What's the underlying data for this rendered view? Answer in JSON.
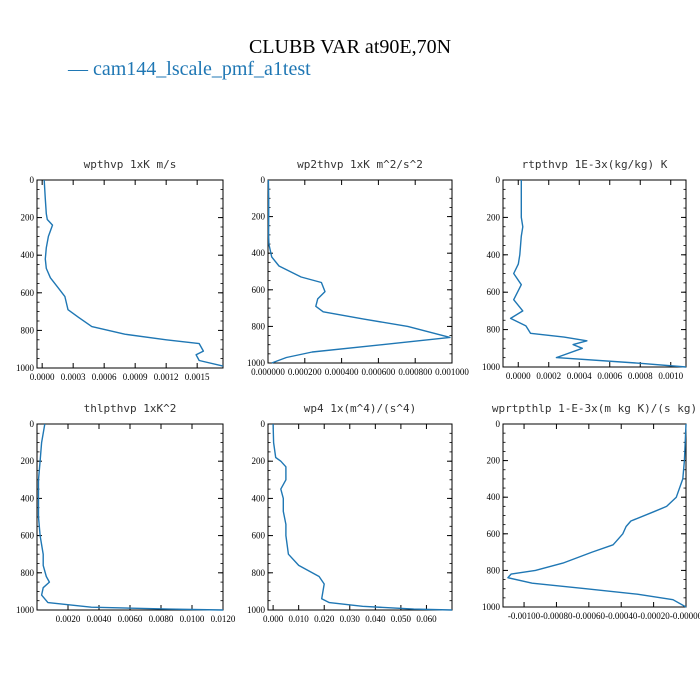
{
  "title": "CLUBB VAR at90E,70N",
  "legend": {
    "series_name": "cam144_lscale_pmf_a1test",
    "color": "#1f77b4"
  },
  "chart_data": [
    {
      "type": "line",
      "title": "wpthvp  1xK m/s",
      "xlim": [
        -5e-05,
        0.00175
      ],
      "ylim": [
        1000,
        0
      ],
      "xticks": [
        0,
        0.0003,
        0.0006,
        0.0009,
        0.0012,
        0.0015
      ],
      "xtick_labels": [
        "0.0000",
        "0.0003",
        "0.0006",
        "0.0009",
        "0.0012",
        "0.0015"
      ],
      "yticks": [
        0,
        200,
        400,
        600,
        800,
        1000
      ],
      "series": [
        {
          "x": [
            2e-05,
            3e-05,
            4e-05,
            5e-05,
            0.0001,
            6e-05,
            4e-05,
            3e-05,
            4e-05,
            8e-05,
            0.00015,
            0.00022,
            0.00025,
            0.00035,
            0.00048,
            0.0008,
            0.0012,
            0.00152,
            0.00156,
            0.00149,
            0.00152,
            0.00175
          ],
          "y": [
            0,
            100,
            180,
            210,
            240,
            300,
            360,
            420,
            470,
            520,
            570,
            620,
            690,
            730,
            780,
            820,
            850,
            870,
            910,
            930,
            960,
            990
          ]
        }
      ]
    },
    {
      "type": "line",
      "title": "wp2thvp  1xK m^2/s^2",
      "xlim": [
        0,
        0.001
      ],
      "ylim": [
        1000,
        0
      ],
      "xticks": [
        0,
        0.0002,
        0.0004,
        0.0006,
        0.0008,
        0.001
      ],
      "xtick_labels": [
        "0.000000",
        "0.000200",
        "0.000400",
        "0.000600",
        "0.000800",
        "0.001000"
      ],
      "yticks": [
        0,
        200,
        400,
        600,
        800,
        1000
      ],
      "series": [
        {
          "x": [
            2e-06,
            4e-06,
            4e-06,
            3e-06,
            5e-06,
            2e-05,
            6e-05,
            0.00018,
            0.00029,
            0.00031,
            0.00027,
            0.00026,
            0.0003,
            0.00052,
            0.00076,
            0.000989,
            0.00062,
            0.00024,
            0.0001,
            2e-05
          ],
          "y": [
            0,
            100,
            200,
            300,
            350,
            420,
            470,
            530,
            560,
            610,
            650,
            690,
            720,
            760,
            800,
            860,
            900,
            940,
            970,
            1000
          ]
        }
      ]
    },
    {
      "type": "line",
      "title": "rtpthvp  1E-3x(kg/kg) K",
      "xlim": [
        -0.0001,
        0.0011
      ],
      "ylim": [
        1000,
        0
      ],
      "xticks": [
        0,
        0.0002,
        0.0004,
        0.0006,
        0.0008,
        0.001
      ],
      "xtick_labels": [
        "0.0000",
        "0.0002",
        "0.0004",
        "0.0006",
        "0.0008",
        "0.0010"
      ],
      "yticks": [
        0,
        200,
        400,
        600,
        800,
        1000
      ],
      "series": [
        {
          "x": [
            2e-05,
            2e-05,
            3e-05,
            2e-05,
            1e-05,
            0.0,
            -3e-05,
            2e-05,
            -3e-05,
            3e-05,
            -5e-05,
            5e-05,
            8e-05,
            0.0003,
            0.00045,
            0.00036,
            0.00042,
            0.00025,
            0.0008,
            0.0011
          ],
          "y": [
            0,
            200,
            250,
            300,
            400,
            450,
            500,
            560,
            640,
            700,
            740,
            780,
            820,
            840,
            860,
            880,
            900,
            950,
            980,
            1000
          ]
        }
      ]
    },
    {
      "type": "line",
      "title": "thlpthvp  1xK^2",
      "xlim": [
        0,
        0.012
      ],
      "ylim": [
        1000,
        0
      ],
      "xticks": [
        0.002,
        0.004,
        0.006,
        0.008,
        0.01,
        0.012
      ],
      "xtick_labels": [
        "0.0020",
        "0.0040",
        "0.0060",
        "0.0080",
        "0.0100",
        "0.0120"
      ],
      "yticks": [
        0,
        200,
        400,
        600,
        800,
        1000
      ],
      "series": [
        {
          "x": [
            0.0005,
            0.0003,
            0.0002,
            0.0001,
            0.0001,
            0.0002,
            0.0004,
            0.0004,
            0.0006,
            0.0008,
            0.0004,
            0.0003,
            0.0007,
            0.0035,
            0.0085,
            0.012
          ],
          "y": [
            0,
            100,
            200,
            300,
            500,
            600,
            700,
            760,
            820,
            850,
            880,
            920,
            960,
            985,
            995,
            1000
          ]
        }
      ]
    },
    {
      "type": "line",
      "title": "wp4  1x(m^4)/(s^4)",
      "xlim": [
        -0.002,
        0.07
      ],
      "ylim": [
        1000,
        0
      ],
      "xticks": [
        0,
        0.01,
        0.02,
        0.03,
        0.04,
        0.05,
        0.06
      ],
      "xtick_labels": [
        "0.000",
        "0.010",
        "0.020",
        "0.030",
        "0.040",
        "0.050",
        "0.060"
      ],
      "yticks": [
        0,
        200,
        400,
        600,
        800,
        1000
      ],
      "series": [
        {
          "x": [
            0.0,
            0.0002,
            0.001,
            0.003,
            0.005,
            0.005,
            0.003,
            0.004,
            0.004,
            0.005,
            0.005,
            0.006,
            0.01,
            0.018,
            0.02,
            0.019,
            0.022,
            0.035,
            0.055,
            0.07
          ],
          "y": [
            0,
            100,
            180,
            200,
            230,
            300,
            350,
            400,
            470,
            540,
            600,
            700,
            760,
            820,
            860,
            940,
            960,
            980,
            995,
            1000
          ]
        }
      ]
    },
    {
      "type": "line",
      "title": "wprtpthlp  1-E-3x(m kg K)/(s kg)",
      "xlim": [
        -0.00113,
        0.0
      ],
      "ylim": [
        1000,
        0
      ],
      "xticks": [
        -0.001,
        -0.0008,
        -0.0006,
        -0.0004,
        -0.0002,
        0
      ],
      "xtick_labels": [
        "-0.00100",
        "-0.00080",
        "-0.00060",
        "-0.00040",
        "-0.00020",
        "-0.00000"
      ],
      "yticks": [
        0,
        200,
        400,
        600,
        800,
        1000
      ],
      "series": [
        {
          "x": [
            0.0,
            -1e-05,
            -2e-05,
            -6e-05,
            -0.00012,
            -0.0002,
            -0.00034,
            -0.00037,
            -0.00039,
            -0.00042,
            -0.00045,
            -0.00058,
            -0.00076,
            -0.00093,
            -0.00108,
            -0.0011,
            -0.00095,
            -0.00062,
            -0.0003,
            -8e-05,
            0.0
          ],
          "y": [
            0,
            200,
            300,
            400,
            450,
            480,
            530,
            560,
            600,
            630,
            660,
            700,
            760,
            800,
            820,
            840,
            870,
            900,
            930,
            960,
            1000
          ]
        }
      ]
    }
  ]
}
